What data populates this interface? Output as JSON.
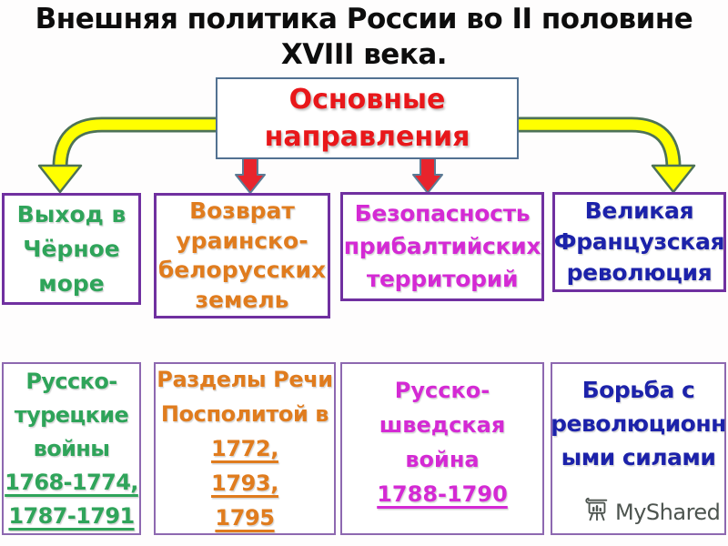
{
  "slide": {
    "title_line1": "Внешняя политика России во II половине",
    "title_line2": "XVIII века.",
    "root_label": "Основные направления"
  },
  "directions": [
    {
      "name": "black-sea-access",
      "color": "#2fa45a",
      "lines": [
        "Выход в",
        "Чёрное",
        "море"
      ]
    },
    {
      "name": "ukrainian-belarusian-lands",
      "color": "#e07c1e",
      "lines": [
        "Возврат",
        "ураинско-",
        "белорусских",
        "земель"
      ]
    },
    {
      "name": "baltic-security",
      "color": "#d42ad4",
      "lines": [
        "Безопасность",
        "прибалтийских",
        "территорий"
      ]
    },
    {
      "name": "french-revolution",
      "color": "#1c22aa",
      "lines": [
        "Великая",
        "Французская",
        "революция"
      ]
    }
  ],
  "events": [
    {
      "name": "russo-turkish-wars",
      "color": "#2fa45a",
      "lines": [
        {
          "t": "Русско-"
        },
        {
          "t": "турецкие"
        },
        {
          "t": "войны"
        },
        {
          "t": "1768-1774,",
          "u": true
        },
        {
          "t": "1787-1791",
          "u": true
        }
      ]
    },
    {
      "name": "partitions-of-poland",
      "color": "#e07c1e",
      "lines": [
        {
          "t": "Разделы Речи"
        },
        {
          "t": "Посполитой в"
        },
        {
          "t": "1772,",
          "u": true
        },
        {
          "t": "1793,",
          "u": true
        },
        {
          "t": "1795",
          "u": true
        }
      ]
    },
    {
      "name": "russo-swedish-war",
      "color": "#d42ad4",
      "lines": [
        {
          "t": "Русско-"
        },
        {
          "t": "шведская"
        },
        {
          "t": "война"
        },
        {
          "t": "1788-1790",
          "u": true
        }
      ]
    },
    {
      "name": "fight-revolutionary-forces",
      "color": "#1c22aa",
      "lines": [
        {
          "t": "Борьба с"
        },
        {
          "t": "революционн"
        },
        {
          "t": "ыми силами"
        }
      ]
    }
  ],
  "watermark": {
    "label": "MyShared",
    "icon": "easel-presentation-icon",
    "color": "#4d544f"
  },
  "colors": {
    "title_text": "#0d0d0d",
    "root_text_red": "#e8171a",
    "root_border_blue_gray": "#527191",
    "direction_border_purple": "#7030a0",
    "event_border_light_purple": "#8d68b0",
    "yellow_arrow_fill": "#ffff00",
    "yellow_arrow_outline": "#4d7257",
    "red_arrow_fill": "#e8242c",
    "red_arrow_outline": "#5b7b95",
    "background": "#fefdfd"
  }
}
